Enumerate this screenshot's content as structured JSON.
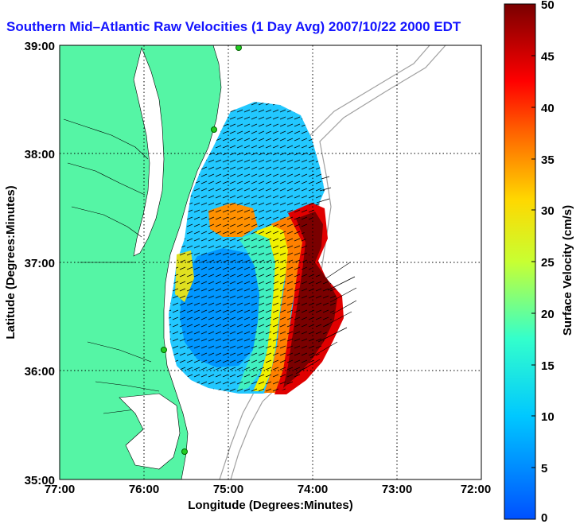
{
  "title": "Southern Mid–Atlantic Raw Velocities (1 Day Avg) 2007/10/22 2000 EDT",
  "map": {
    "x_label": "Longitude (Degrees:Minutes)",
    "y_label": "Latitude (Degrees:Minutes)",
    "x_ticks": [
      "77:00",
      "76:00",
      "75:00",
      "74:00",
      "73:00",
      "72:00"
    ],
    "y_ticks": [
      "39:00",
      "38:00",
      "37:00",
      "36:00",
      "35:00"
    ],
    "land_color": "#55f5a5",
    "grid": "dotted"
  },
  "colorbar": {
    "label": "Surface Velocity (cm/s)",
    "ticks": [
      "50",
      "45",
      "40",
      "35",
      "30",
      "25",
      "20",
      "15",
      "10",
      "5",
      "0"
    ],
    "min": 0,
    "max": 50,
    "colormap": "jet"
  }
}
